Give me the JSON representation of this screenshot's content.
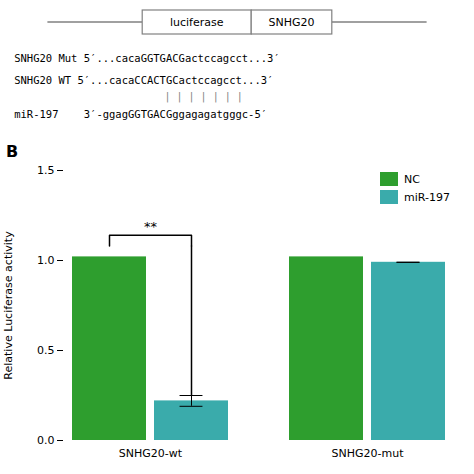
{
  "chart_data": {
    "type": "bar",
    "categories": [
      "SNHG20-wt",
      "SNHG20-mut"
    ],
    "series": [
      {
        "name": "NC",
        "color": "#2e9e2e",
        "values": [
          1.02,
          1.02
        ]
      },
      {
        "name": "miR-197",
        "color": "#3aabab",
        "values": [
          0.22,
          0.99
        ],
        "errors": [
          0.03,
          0.0
        ]
      }
    ],
    "ylabel": "Relative Luciferase activity",
    "ylim": [
      0,
      1.5
    ],
    "yticks": [
      {
        "value": 0,
        "label": "0.0"
      },
      0.5,
      {
        "value": 1,
        "label": "1.0"
      },
      1.5
    ],
    "grid": false,
    "legend": "upper right",
    "annotations": [
      {
        "text": "**",
        "category": "SNHG20-wt"
      },
      {
        "text": "B"
      },
      {
        "text": "luciferase"
      },
      {
        "text": "SNHG20"
      },
      {
        "text": "SNHG20 Mut  5′...cacaGGTGACGactccagcct...3′"
      },
      {
        "text": "SNHG20 WT  5′...cacaCCACTGCactccagcct...3′"
      },
      {
        "text": "| | | | | | |"
      },
      {
        "text": "miR-197    3′-ggagGGTGACGggagagatgggc-5′"
      }
    ]
  }
}
